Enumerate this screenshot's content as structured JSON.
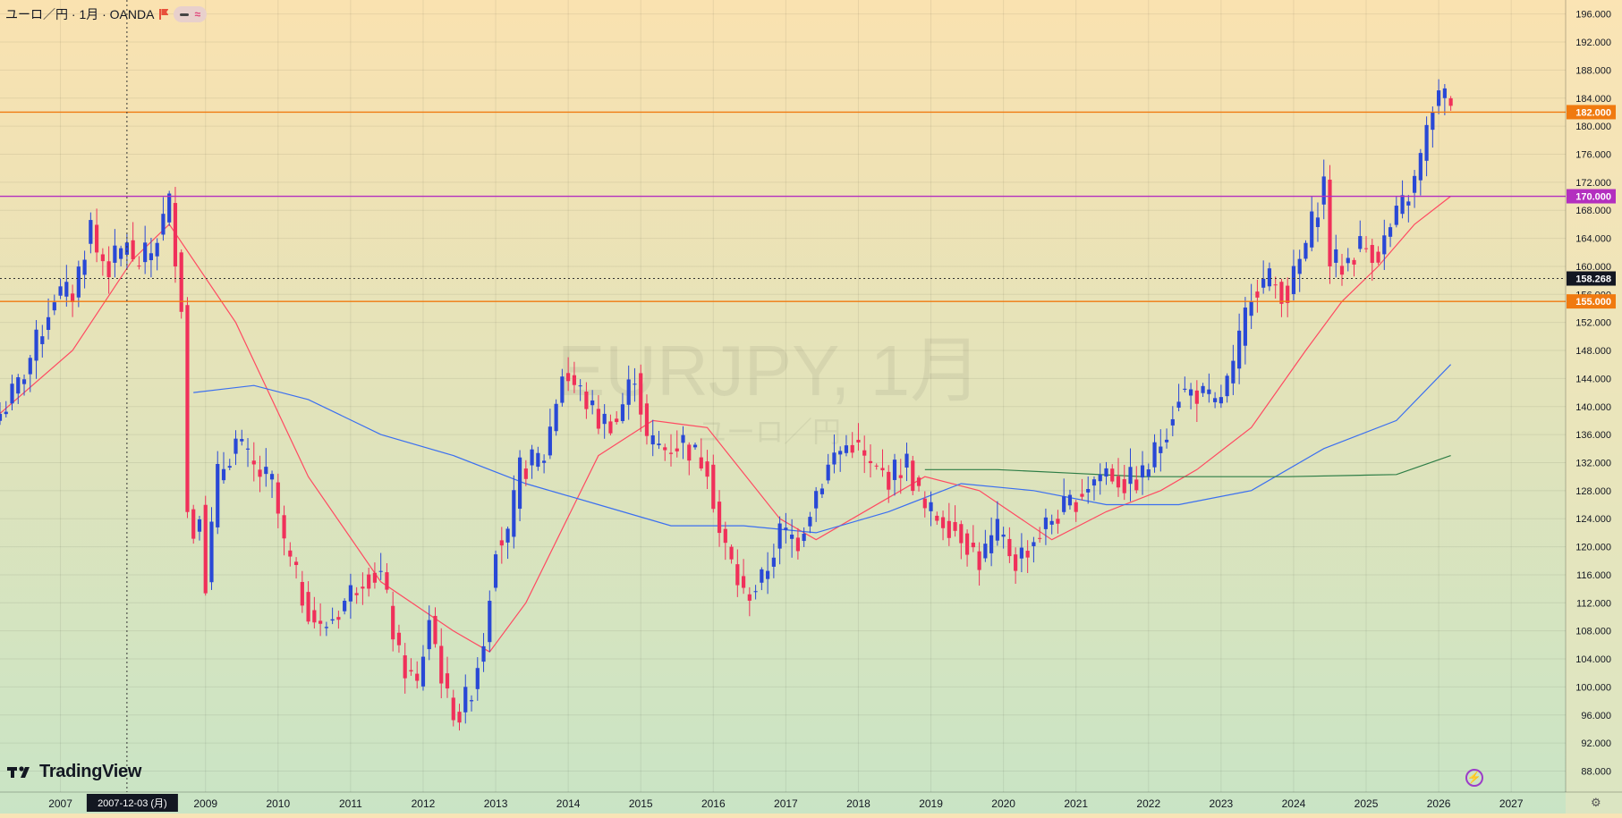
{
  "header": {
    "symbol_line": "ユーロ／円 · 1月 · OANDA"
  },
  "watermark": {
    "ticker": "EURJPY, 1月",
    "name": "ユーロ／円"
  },
  "branding": {
    "logo_text": "TradingView"
  },
  "colors": {
    "up_candle": "#2948d6",
    "down_candle": "#f0305a",
    "sma_fast": "#ff4a62",
    "sma_mid": "#3b6ff0",
    "sma_slow": "#2e7d46",
    "hline_orange": "#f07a10",
    "hline_magenta": "#b32fbf",
    "crosshair": "#333333",
    "bg_top": "#fae2b0",
    "bg_bottom": "#c9e4c5"
  },
  "chart_data": {
    "type": "candlestick",
    "interval": "1月",
    "y_axis": {
      "ticks": [
        "196.000",
        "192.000",
        "188.000",
        "184.000",
        "180.000",
        "176.000",
        "172.000",
        "168.000",
        "164.000",
        "160.000",
        "156.000",
        "152.000",
        "148.000",
        "144.000",
        "140.000",
        "136.000",
        "132.000",
        "128.000",
        "124.000",
        "120.000",
        "116.000",
        "112.000",
        "108.000",
        "104.000",
        "100.000",
        "96.000",
        "92.000",
        "88.000"
      ],
      "ylim": [
        85,
        198
      ]
    },
    "x_axis": {
      "tick_labels": [
        "2007",
        "2009",
        "2010",
        "2011",
        "2012",
        "2013",
        "2014",
        "2015",
        "2016",
        "2017",
        "2018",
        "2019",
        "2020",
        "2021",
        "2022",
        "2023",
        "2024",
        "2025",
        "2026",
        "2027"
      ],
      "xlim": [
        "2006-03",
        "2027-10"
      ]
    },
    "crosshair": {
      "date_label": "2007-12-03 (月)",
      "date": "2007-12",
      "price": 158.268,
      "price_label": "158.268"
    },
    "horizontal_lines": [
      {
        "value": 182.0,
        "label": "182.000",
        "color": "#f07a10"
      },
      {
        "value": 170.0,
        "label": "170.000",
        "color": "#b32fbf"
      },
      {
        "value": 155.0,
        "label": "155.000",
        "color": "#f07a10"
      }
    ],
    "series": [
      {
        "name": "",
        "kind": "close_path",
        "start": "2006-03",
        "interval_months": 1,
        "points": [
          [
            "2006-03",
            139
          ],
          [
            "2006-06",
            143
          ],
          [
            "2006-09",
            149
          ],
          [
            "2006-12",
            156
          ],
          [
            "2007-03",
            156
          ],
          [
            "2007-06",
            166
          ],
          [
            "2007-07",
            162
          ],
          [
            "2007-09",
            160
          ],
          [
            "2007-11",
            162
          ],
          [
            "2007-12",
            164
          ],
          [
            "2008-01",
            160
          ],
          [
            "2008-04",
            162
          ],
          [
            "2008-07",
            169
          ],
          [
            "2008-09",
            155
          ],
          [
            "2008-10",
            125
          ],
          [
            "2008-11",
            122
          ],
          [
            "2008-12",
            126
          ],
          [
            "2009-01",
            115
          ],
          [
            "2009-03",
            130
          ],
          [
            "2009-06",
            135
          ],
          [
            "2009-09",
            131
          ],
          [
            "2009-12",
            129
          ],
          [
            "2010-02",
            120
          ],
          [
            "2010-05",
            113
          ],
          [
            "2010-08",
            108
          ],
          [
            "2010-11",
            111
          ],
          [
            "2011-03",
            116
          ],
          [
            "2011-06",
            116
          ],
          [
            "2011-09",
            104
          ],
          [
            "2011-12",
            100
          ],
          [
            "2012-02",
            110
          ],
          [
            "2012-05",
            98
          ],
          [
            "2012-07",
            96
          ],
          [
            "2012-09",
            100
          ],
          [
            "2012-11",
            107
          ],
          [
            "2013-01",
            121
          ],
          [
            "2013-03",
            121
          ],
          [
            "2013-05",
            131
          ],
          [
            "2013-09",
            133
          ],
          [
            "2013-12",
            145
          ],
          [
            "2014-03",
            142
          ],
          [
            "2014-06",
            138
          ],
          [
            "2014-09",
            138
          ],
          [
            "2014-12",
            145
          ],
          [
            "2015-02",
            135
          ],
          [
            "2015-05",
            134
          ],
          [
            "2015-08",
            135
          ],
          [
            "2015-10",
            133
          ],
          [
            "2015-12",
            132
          ],
          [
            "2016-02",
            122
          ],
          [
            "2016-06",
            113
          ],
          [
            "2016-09",
            115
          ],
          [
            "2016-12",
            122
          ],
          [
            "2017-03",
            121
          ],
          [
            "2017-06",
            128
          ],
          [
            "2017-09",
            133
          ],
          [
            "2017-12",
            135
          ],
          [
            "2018-03",
            131
          ],
          [
            "2018-06",
            130
          ],
          [
            "2018-09",
            132
          ],
          [
            "2018-12",
            125
          ],
          [
            "2019-03",
            124
          ],
          [
            "2019-06",
            122
          ],
          [
            "2019-09",
            118
          ],
          [
            "2019-12",
            122
          ],
          [
            "2020-03",
            118
          ],
          [
            "2020-06",
            121
          ],
          [
            "2020-09",
            124
          ],
          [
            "2020-12",
            126
          ],
          [
            "2021-03",
            129
          ],
          [
            "2021-06",
            131
          ],
          [
            "2021-09",
            129
          ],
          [
            "2021-12",
            130
          ],
          [
            "2022-03",
            135
          ],
          [
            "2022-06",
            142
          ],
          [
            "2022-09",
            142
          ],
          [
            "2022-12",
            140
          ],
          [
            "2023-03",
            145
          ],
          [
            "2023-06",
            157
          ],
          [
            "2023-09",
            158
          ],
          [
            "2023-12",
            156
          ],
          [
            "2024-03",
            163
          ],
          [
            "2024-06",
            172
          ],
          [
            "2024-07",
            161
          ],
          [
            "2024-09",
            160
          ],
          [
            "2024-12",
            163
          ],
          [
            "2025-03",
            162
          ],
          [
            "2025-06",
            167
          ],
          [
            "2025-09",
            172
          ],
          [
            "2025-11",
            179
          ],
          [
            "2025-12",
            183
          ],
          [
            "2026-01",
            184
          ],
          [
            "2026-03",
            184
          ]
        ]
      },
      {
        "name": "",
        "kind": "sma",
        "color": "#ff4a62",
        "points": [
          [
            "2006-03",
            139
          ],
          [
            "2007-03",
            148
          ],
          [
            "2008-01",
            161
          ],
          [
            "2008-07",
            166
          ],
          [
            "2009-06",
            152
          ],
          [
            "2010-06",
            130
          ],
          [
            "2011-06",
            115
          ],
          [
            "2012-06",
            108
          ],
          [
            "2012-12",
            105
          ],
          [
            "2013-06",
            112
          ],
          [
            "2014-06",
            133
          ],
          [
            "2015-03",
            138
          ],
          [
            "2015-12",
            137
          ],
          [
            "2016-12",
            124
          ],
          [
            "2017-06",
            121
          ],
          [
            "2018-06",
            127
          ],
          [
            "2018-12",
            130
          ],
          [
            "2019-09",
            128
          ],
          [
            "2020-09",
            121
          ],
          [
            "2021-06",
            125
          ],
          [
            "2022-03",
            128
          ],
          [
            "2022-09",
            131
          ],
          [
            "2023-06",
            137
          ],
          [
            "2024-03",
            148
          ],
          [
            "2024-09",
            155
          ],
          [
            "2025-03",
            160
          ],
          [
            "2025-09",
            166
          ],
          [
            "2026-03",
            170
          ]
        ]
      },
      {
        "name": "",
        "kind": "sma",
        "color": "#3b6ff0",
        "points": [
          [
            "2008-11",
            142
          ],
          [
            "2009-09",
            143
          ],
          [
            "2010-06",
            141
          ],
          [
            "2011-06",
            136
          ],
          [
            "2012-06",
            133
          ],
          [
            "2013-06",
            129
          ],
          [
            "2014-06",
            126
          ],
          [
            "2015-06",
            123
          ],
          [
            "2016-06",
            123
          ],
          [
            "2017-06",
            122
          ],
          [
            "2018-06",
            125
          ],
          [
            "2019-06",
            129
          ],
          [
            "2020-06",
            128
          ],
          [
            "2021-06",
            126
          ],
          [
            "2022-06",
            126
          ],
          [
            "2023-06",
            128
          ],
          [
            "2024-06",
            134
          ],
          [
            "2025-06",
            138
          ],
          [
            "2026-03",
            146
          ]
        ]
      },
      {
        "name": "",
        "kind": "sma",
        "color": "#2e7d46",
        "points": [
          [
            "2018-12",
            131
          ],
          [
            "2019-12",
            131
          ],
          [
            "2020-12",
            130.5
          ],
          [
            "2021-12",
            130
          ],
          [
            "2022-12",
            130
          ],
          [
            "2023-12",
            130
          ],
          [
            "2024-12",
            130.2
          ],
          [
            "2025-06",
            130.3
          ],
          [
            "2026-03",
            133
          ]
        ]
      }
    ]
  }
}
